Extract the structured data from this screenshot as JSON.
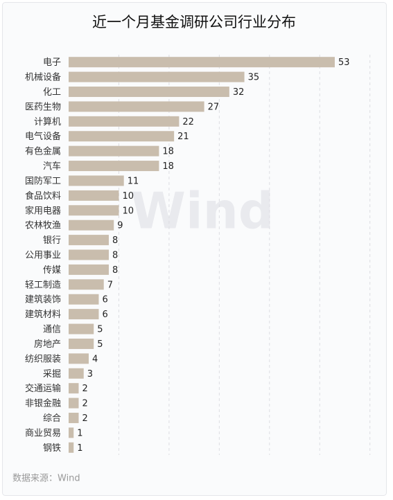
{
  "chart_data": {
    "type": "bar",
    "orientation": "horizontal",
    "title": "近一个月基金调研公司行业分布",
    "watermark": "Wind",
    "source": "数据来源：Wind",
    "categories": [
      "电子",
      "机械设备",
      "化工",
      "医药生物",
      "计算机",
      "电气设备",
      "有色金属",
      "汽车",
      "国防军工",
      "食品饮料",
      "家用电器",
      "农林牧渔",
      "银行",
      "公用事业",
      "传媒",
      "轻工制造",
      "建筑装饰",
      "建筑材料",
      "通信",
      "房地产",
      "纺织服装",
      "采掘",
      "交通运输",
      "非银金融",
      "综合",
      "商业贸易",
      "钢铁"
    ],
    "values": [
      53,
      35,
      32,
      27,
      22,
      21,
      18,
      18,
      11,
      10,
      10,
      9,
      8,
      8,
      8,
      7,
      6,
      6,
      5,
      5,
      4,
      3,
      2,
      2,
      2,
      1,
      1
    ],
    "color": "#c9bdad",
    "xlim": [
      0,
      60
    ],
    "xticks": [
      10,
      20,
      30,
      40,
      50,
      60
    ],
    "grid": true
  }
}
